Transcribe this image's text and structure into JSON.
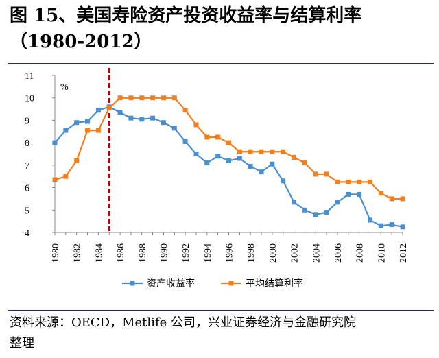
{
  "header": {
    "title_line1": "图 15、美国寿险资产投资收益率与结算利率",
    "title_line2": "（1980-2012）"
  },
  "footer": {
    "source_line1": "资料来源：OECD，Metlife 公司，兴业证券经济与金融研究院",
    "source_line2": "整理"
  },
  "chart_data": {
    "type": "line",
    "unit_label": "%",
    "x": [
      1980,
      1981,
      1982,
      1983,
      1984,
      1985,
      1986,
      1987,
      1988,
      1989,
      1990,
      1991,
      1992,
      1993,
      1994,
      1995,
      1996,
      1997,
      1998,
      1999,
      2000,
      2001,
      2002,
      2003,
      2004,
      2005,
      2006,
      2007,
      2008,
      2009,
      2010,
      2011,
      2012
    ],
    "x_ticks": [
      "1980",
      "1982",
      "1984",
      "1986",
      "1988",
      "1990",
      "1992",
      "1994",
      "1996",
      "1998",
      "2000",
      "2002",
      "2004",
      "2006",
      "2008",
      "2010",
      "2012"
    ],
    "y_ticks": [
      "4",
      "5",
      "6",
      "7",
      "8",
      "9",
      "10",
      "11"
    ],
    "ylim": [
      4,
      11
    ],
    "xlim": [
      1980,
      2012
    ],
    "grid": false,
    "legend_position": "bottom",
    "vline": {
      "x": 1985,
      "color": "#c00000",
      "style": "dashed"
    },
    "series": [
      {
        "name": "资产收益率",
        "color": "#4a90d0",
        "marker": "square",
        "values": [
          8.0,
          8.55,
          8.9,
          8.95,
          9.45,
          9.6,
          9.35,
          9.1,
          9.05,
          9.1,
          8.9,
          8.65,
          8.05,
          7.5,
          7.1,
          7.4,
          7.2,
          7.3,
          6.95,
          6.7,
          7.05,
          6.3,
          5.35,
          5.0,
          4.8,
          4.9,
          5.35,
          5.7,
          5.7,
          4.55,
          4.3,
          4.35,
          4.25
        ]
      },
      {
        "name": "平均结算利率",
        "color": "#f07f1f",
        "marker": "square",
        "values": [
          6.35,
          6.5,
          7.2,
          8.55,
          8.55,
          9.55,
          10.0,
          10.0,
          10.0,
          10.0,
          10.0,
          10.0,
          9.45,
          8.8,
          8.25,
          8.25,
          8.0,
          7.6,
          7.6,
          7.6,
          7.6,
          7.6,
          7.35,
          7.1,
          6.6,
          6.6,
          6.25,
          6.25,
          6.25,
          6.25,
          5.75,
          5.5,
          5.5
        ]
      }
    ]
  }
}
